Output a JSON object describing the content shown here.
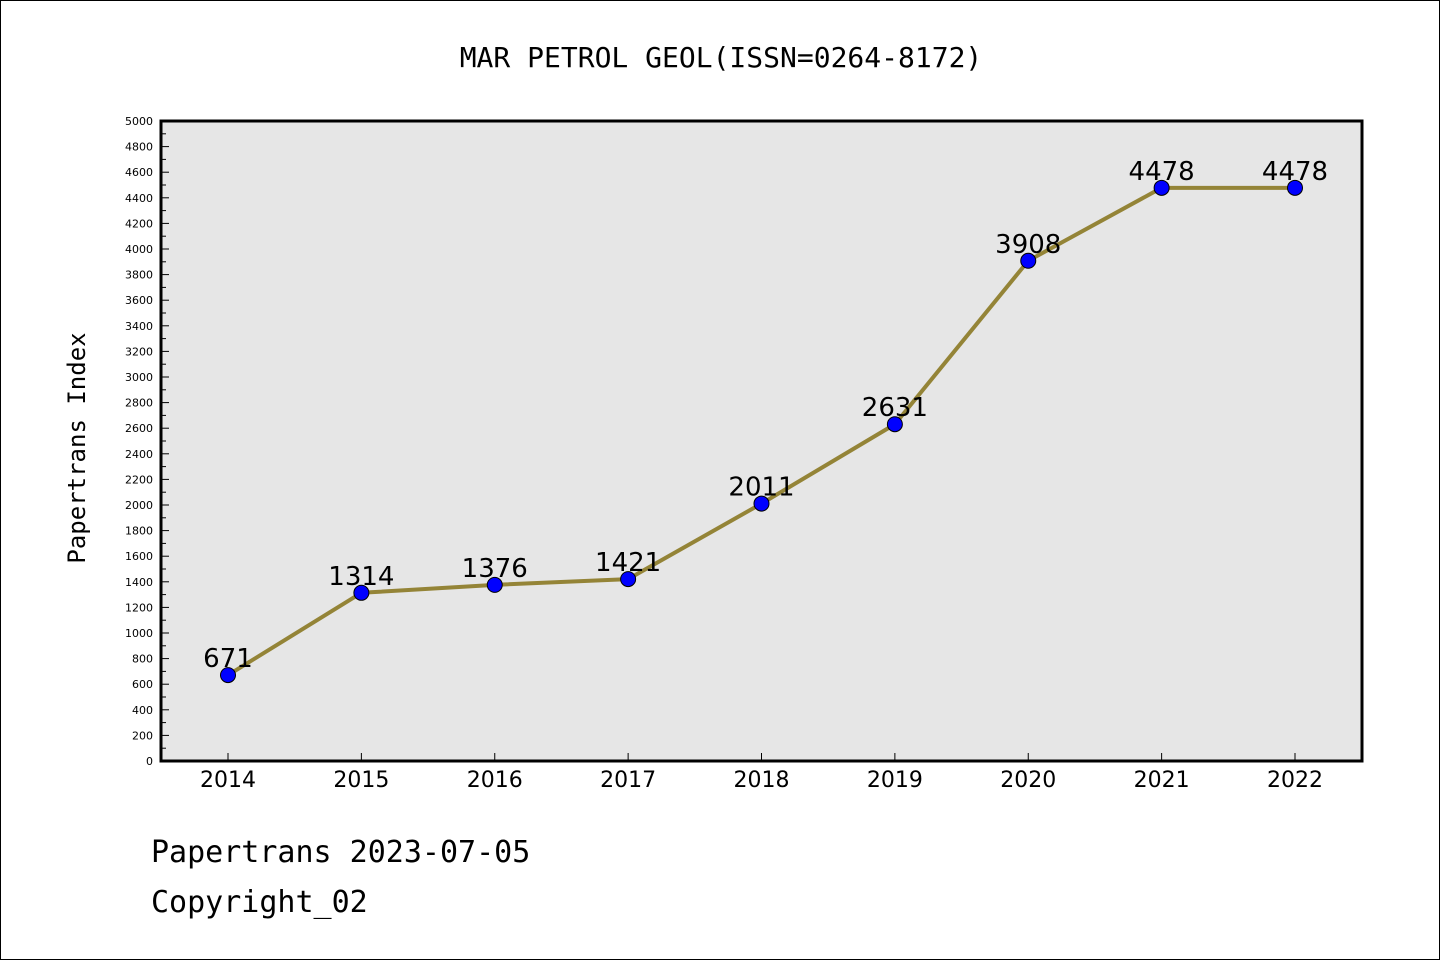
{
  "chart_data": {
    "type": "line",
    "title": "MAR PETROL GEOL(ISSN=0264-8172)",
    "xlabel": "",
    "ylabel": "Papertrans Index",
    "categories": [
      "2014",
      "2015",
      "2016",
      "2017",
      "2018",
      "2019",
      "2020",
      "2021",
      "2022"
    ],
    "series": [
      {
        "values": [
          671,
          1314,
          1376,
          1421,
          2011,
          2631,
          3908,
          4478,
          4478
        ],
        "line_color": "#948437",
        "marker_color": "#0000ff"
      }
    ],
    "ylim": [
      0,
      5000
    ],
    "yticks": [
      0,
      200,
      400,
      600,
      800,
      1000,
      1200,
      1400,
      1600,
      1800,
      2000,
      2200,
      2400,
      2600,
      2800,
      3000,
      3200,
      3400,
      3600,
      3800,
      4000,
      4200,
      4400,
      4600,
      4800,
      5000
    ],
    "grid": false,
    "legend": "none",
    "plot_background": "#e6e6e6",
    "data_labels": true
  },
  "footer": {
    "source_text": "Papertrans 2023-07-05",
    "copyright_text": "Copyright_02"
  }
}
